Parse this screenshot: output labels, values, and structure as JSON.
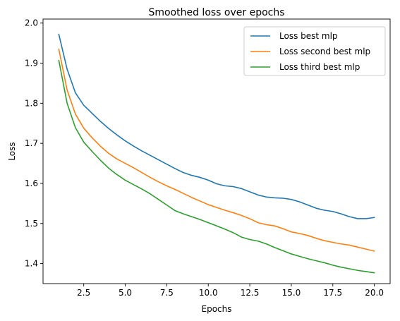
{
  "chart_data": {
    "type": "line",
    "title": "Smoothed loss over epochs",
    "xlabel": "Epochs",
    "ylabel": "Loss",
    "xlim": [
      0.05,
      20.95
    ],
    "ylim": [
      1.35,
      2.01
    ],
    "x_ticks": [
      2.5,
      5.0,
      7.5,
      10.0,
      12.5,
      15.0,
      17.5,
      20.0
    ],
    "x_tick_labels": [
      "2.5",
      "5.0",
      "7.5",
      "10.0",
      "12.5",
      "15.0",
      "17.5",
      "20.0"
    ],
    "y_ticks": [
      1.4,
      1.5,
      1.6,
      1.7,
      1.8,
      1.9,
      2.0
    ],
    "y_tick_labels": [
      "1.4",
      "1.5",
      "1.6",
      "1.7",
      "1.8",
      "1.9",
      "2.0"
    ],
    "grid": false,
    "legend_position": "top-right",
    "x": [
      1.0,
      1.5,
      2.0,
      2.5,
      3.0,
      3.5,
      4.0,
      4.5,
      5.0,
      5.5,
      6.0,
      6.5,
      7.0,
      7.5,
      8.0,
      8.5,
      9.0,
      9.5,
      10.0,
      10.5,
      11.0,
      11.5,
      12.0,
      12.5,
      13.0,
      13.5,
      14.0,
      14.5,
      15.0,
      15.5,
      16.0,
      16.5,
      17.0,
      17.5,
      18.0,
      18.5,
      19.0,
      19.5,
      20.0
    ],
    "series": [
      {
        "name": "Loss best mlp",
        "color": "#1f77b4",
        "values": [
          1.972,
          1.885,
          1.826,
          1.795,
          1.775,
          1.755,
          1.737,
          1.721,
          1.706,
          1.693,
          1.681,
          1.67,
          1.659,
          1.648,
          1.637,
          1.627,
          1.62,
          1.615,
          1.608,
          1.599,
          1.594,
          1.592,
          1.587,
          1.579,
          1.571,
          1.566,
          1.564,
          1.563,
          1.56,
          1.554,
          1.546,
          1.538,
          1.533,
          1.53,
          1.524,
          1.517,
          1.512,
          1.512,
          1.515
        ]
      },
      {
        "name": "Loss second best mlp",
        "color": "#ff7f0e",
        "values": [
          1.935,
          1.833,
          1.773,
          1.738,
          1.714,
          1.693,
          1.675,
          1.661,
          1.65,
          1.639,
          1.627,
          1.615,
          1.604,
          1.594,
          1.585,
          1.575,
          1.565,
          1.556,
          1.547,
          1.54,
          1.533,
          1.527,
          1.52,
          1.512,
          1.502,
          1.497,
          1.494,
          1.487,
          1.479,
          1.475,
          1.47,
          1.463,
          1.457,
          1.453,
          1.449,
          1.446,
          1.441,
          1.436,
          1.431
        ]
      },
      {
        "name": "Loss third best mlp",
        "color": "#2ca02c",
        "values": [
          1.907,
          1.8,
          1.739,
          1.703,
          1.68,
          1.658,
          1.638,
          1.622,
          1.608,
          1.597,
          1.586,
          1.574,
          1.56,
          1.546,
          1.532,
          1.524,
          1.517,
          1.51,
          1.502,
          1.494,
          1.486,
          1.477,
          1.466,
          1.46,
          1.456,
          1.449,
          1.44,
          1.432,
          1.424,
          1.418,
          1.412,
          1.407,
          1.402,
          1.396,
          1.391,
          1.387,
          1.383,
          1.38,
          1.377
        ]
      }
    ]
  }
}
